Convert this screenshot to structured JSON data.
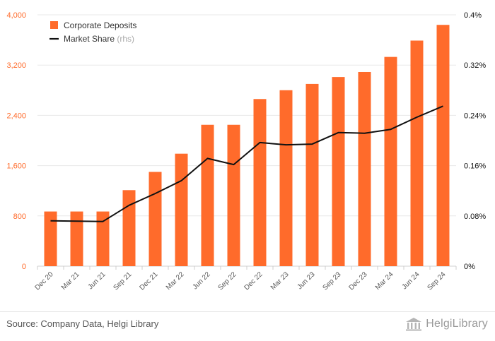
{
  "chart_data": {
    "type": "bar",
    "categories": [
      "Dec 20",
      "Mar 21",
      "Jun 21",
      "Sep 21",
      "Dec 21",
      "Mar 22",
      "Jun 22",
      "Sep 22",
      "Dec 22",
      "Mar 23",
      "Jun 23",
      "Sep 23",
      "Dec 23",
      "Mar 24",
      "Jun 24",
      "Sep 24"
    ],
    "series": [
      {
        "name": "Corporate Deposits",
        "type": "bar",
        "axis": "left",
        "color": "#ff6b2b",
        "values": [
          870,
          870,
          870,
          1210,
          1500,
          1790,
          2250,
          2250,
          2660,
          2800,
          2900,
          3010,
          3090,
          3330,
          3590,
          3840
        ]
      },
      {
        "name": "Market Share",
        "type": "line",
        "axis": "right",
        "color": "#111111",
        "values": [
          0.0721,
          0.0716,
          0.0711,
          0.0969,
          0.1156,
          0.1361,
          0.1715,
          0.1617,
          0.1967,
          0.1932,
          0.1943,
          0.2126,
          0.2116,
          0.2177,
          0.2371,
          0.2547
        ]
      }
    ],
    "legend": [
      {
        "label": "Corporate Deposits",
        "suffix": ""
      },
      {
        "label": "Market Share",
        "suffix": "(rhs)"
      }
    ],
    "legend_position": "top-left",
    "yaxis_left": {
      "ylim": [
        0,
        4000
      ],
      "ticks": [
        0,
        800,
        1600,
        2400,
        3200,
        4000
      ],
      "tick_labels": [
        "0",
        "800",
        "1,600",
        "2,400",
        "3,200",
        "4,000"
      ],
      "color": "#ff6b2b"
    },
    "yaxis_right": {
      "ylim": [
        0,
        0.4
      ],
      "ticks": [
        0,
        0.08,
        0.16,
        0.24,
        0.32,
        0.4
      ],
      "tick_labels": [
        "0%",
        "0.08%",
        "0.16%",
        "0.24%",
        "0.32%",
        "0.4%"
      ],
      "color": "#111111"
    },
    "grid": true
  },
  "footer": {
    "source": "Source: Company Data, Helgi Library",
    "logo_text": "HelgiLibrary"
  }
}
